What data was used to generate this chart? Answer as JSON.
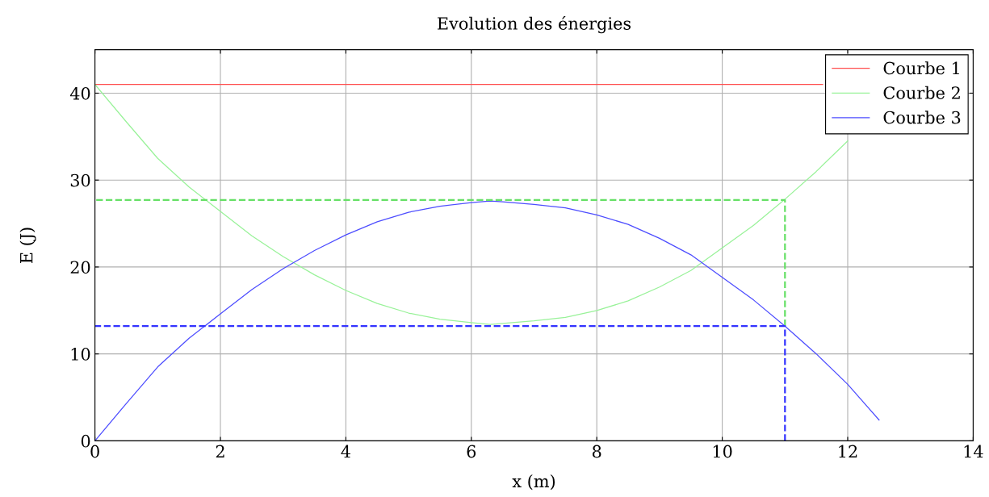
{
  "chart_data": {
    "type": "line",
    "title": "Evolution des énergies",
    "xlabel": "x (m)",
    "ylabel": "E (J)",
    "xlim": [
      0,
      14
    ],
    "ylim": [
      0,
      45
    ],
    "xticks": [
      0,
      2,
      4,
      6,
      8,
      10,
      12,
      14
    ],
    "yticks": [
      0,
      10,
      20,
      30,
      40
    ],
    "grid": true,
    "legend": "top right",
    "marker": "none",
    "series": [
      {
        "name": "Courbe 1",
        "color": "#ff4d4d",
        "x": [
          0,
          11.6
        ],
        "values": [
          41,
          41
        ]
      },
      {
        "name": "Courbe 2",
        "color": "#99f299",
        "x": [
          0,
          0.5,
          1,
          1.5,
          2,
          2.5,
          3,
          3.5,
          4,
          4.5,
          5,
          5.5,
          6,
          6.3,
          6.5,
          7,
          7.5,
          8,
          8.5,
          9,
          9.5,
          10,
          10.5,
          11,
          11.5,
          12
        ],
        "values": [
          41,
          36.7,
          32.5,
          29.2,
          26.4,
          23.6,
          21.2,
          19.1,
          17.3,
          15.8,
          14.7,
          14.0,
          13.6,
          13.4,
          13.5,
          13.8,
          14.2,
          15.0,
          16.1,
          17.7,
          19.6,
          22.2,
          24.8,
          27.8,
          31.0,
          34.5
        ]
      },
      {
        "name": "Courbe 3",
        "color": "#4d4dff",
        "x": [
          0,
          0.5,
          1,
          1.5,
          2,
          2.5,
          3,
          3.5,
          4,
          4.5,
          5,
          5.5,
          6,
          6.3,
          6.5,
          7,
          7.5,
          8,
          8.5,
          9,
          9.5,
          10,
          10.5,
          11,
          11.5,
          12,
          12.5
        ],
        "values": [
          0,
          4.3,
          8.5,
          11.8,
          14.6,
          17.4,
          19.8,
          21.9,
          23.7,
          25.2,
          26.3,
          27.0,
          27.4,
          27.6,
          27.5,
          27.2,
          26.8,
          26.0,
          24.9,
          23.3,
          21.4,
          18.8,
          16.2,
          13.2,
          10.0,
          6.5,
          2.4
        ]
      },
      {
        "color": "#66e066",
        "line_style": "dashed",
        "x": [
          11,
          11,
          0
        ],
        "values": [
          13.2,
          27.7,
          27.7
        ]
      },
      {
        "color": "#3333ff",
        "line_style": "dashed",
        "x": [
          11,
          11,
          0
        ],
        "values": [
          0,
          13.2,
          13.2
        ]
      }
    ]
  }
}
